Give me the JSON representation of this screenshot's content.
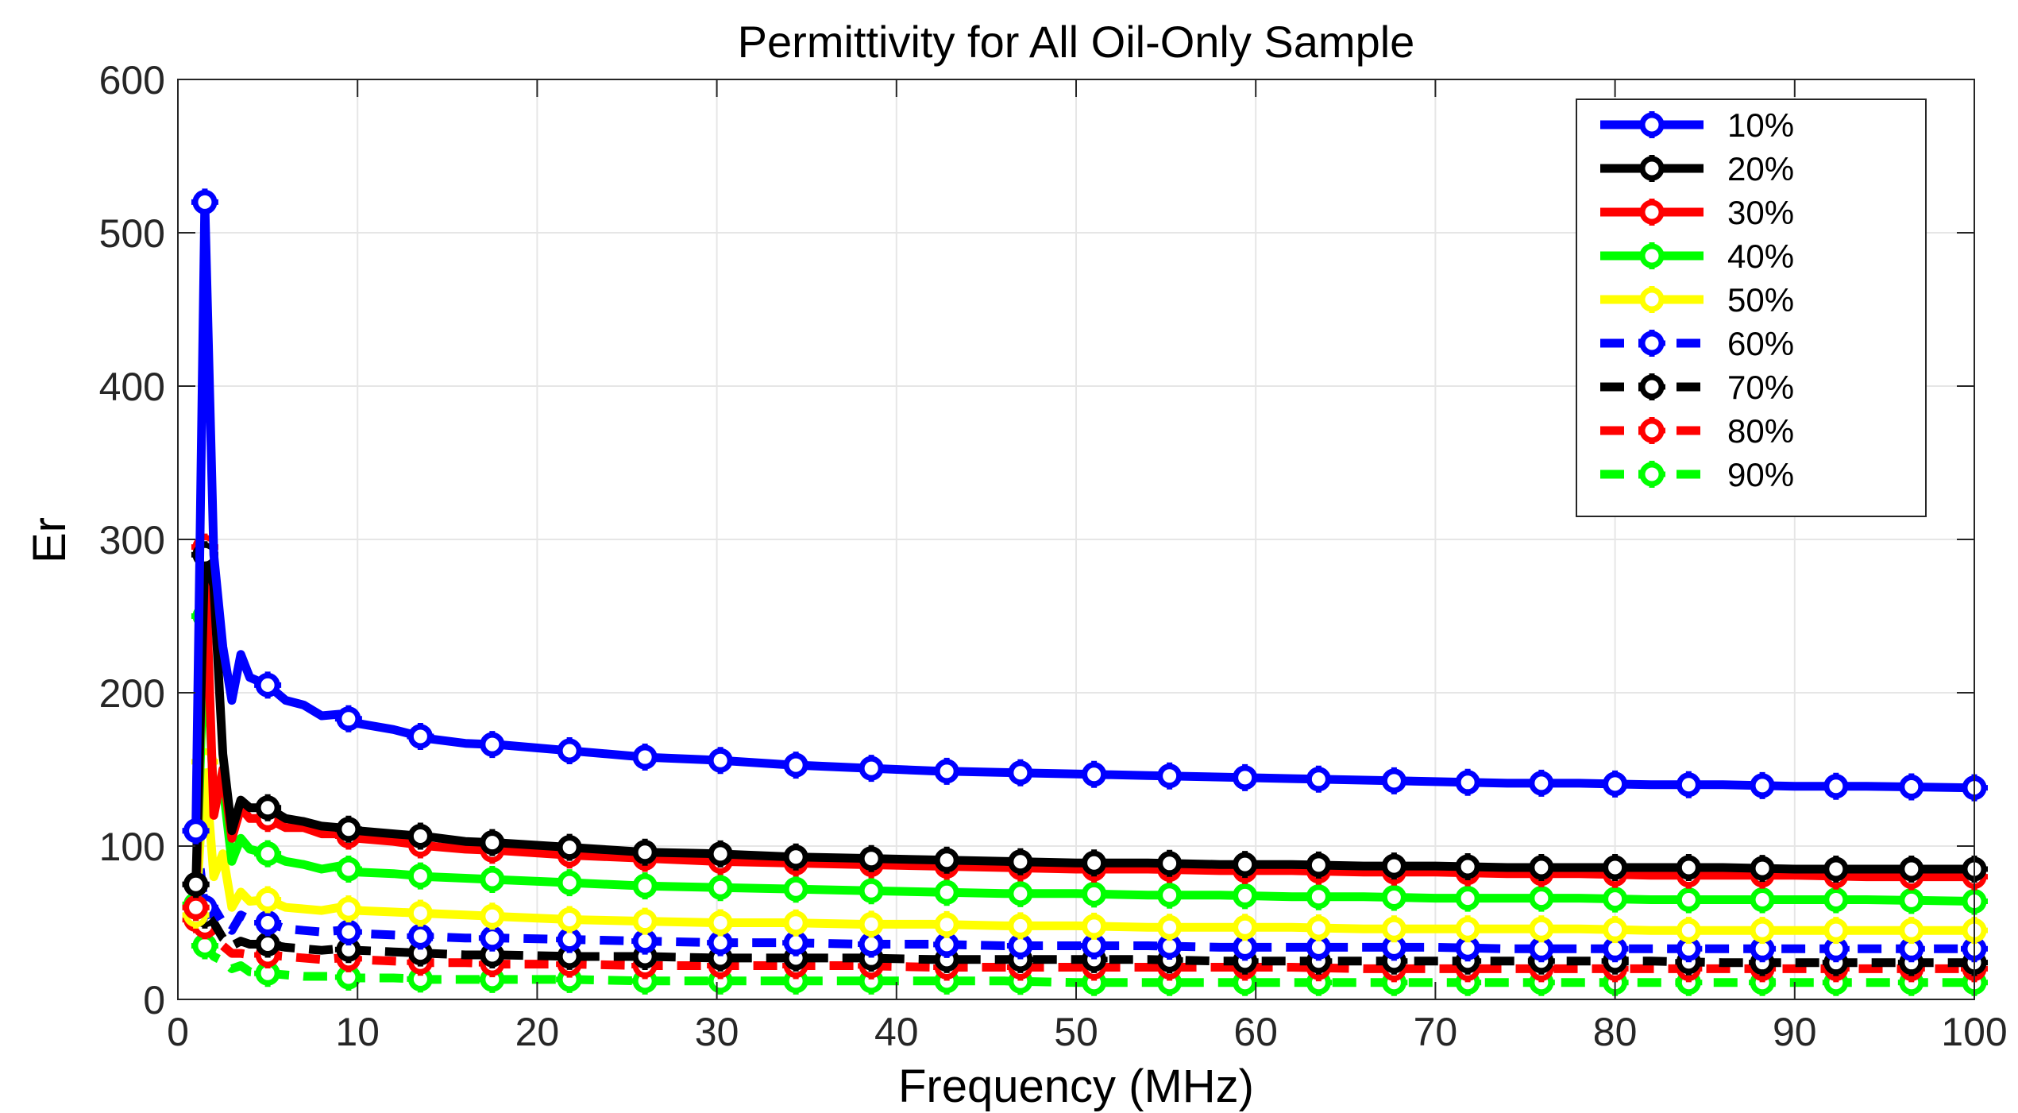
{
  "chart_data": {
    "type": "line",
    "title": "Permittivity for All Oil-Only Sample",
    "xlabel": "Frequency (MHz)",
    "ylabel": "Er",
    "xlim": [
      0,
      100
    ],
    "ylim": [
      0,
      600
    ],
    "xticks": [
      0,
      10,
      20,
      30,
      40,
      50,
      60,
      70,
      80,
      90,
      100
    ],
    "yticks": [
      0,
      100,
      200,
      300,
      400,
      500,
      600
    ],
    "grid": true,
    "legend_position": "top-right",
    "x": [
      1,
      1.5,
      2,
      2.5,
      3,
      3.5,
      4,
      5,
      6,
      7,
      8,
      9,
      10,
      12,
      14,
      16,
      18,
      22,
      26,
      30,
      34,
      38,
      42,
      46,
      50,
      54,
      58,
      62,
      66,
      70,
      74,
      78,
      82,
      86,
      90,
      94,
      100
    ],
    "marker_x": [
      1,
      1.5,
      5,
      9.5,
      13.5,
      17.5,
      21.8,
      26,
      30.2,
      34.4,
      38.6,
      42.8,
      46.9,
      51,
      55.2,
      59.4,
      63.5,
      67.7,
      71.8,
      75.9,
      80,
      84.1,
      88.2,
      92.3,
      96.5,
      100
    ],
    "series": [
      {
        "name": "10%",
        "color": "#0000ff",
        "style": "solid",
        "values": [
          110,
          520,
          290,
          230,
          195,
          225,
          210,
          205,
          195,
          192,
          185,
          186,
          180,
          176,
          170,
          167,
          166,
          162,
          158,
          156,
          153,
          151,
          149,
          148,
          147,
          146,
          145,
          144,
          143,
          142,
          141,
          141,
          140,
          140,
          139,
          139,
          138
        ]
      },
      {
        "name": "20%",
        "color": "#000000",
        "style": "solid",
        "values": [
          75,
          290,
          270,
          160,
          110,
          130,
          125,
          125,
          118,
          116,
          113,
          112,
          110,
          108,
          106,
          103,
          102,
          99,
          96,
          95,
          93,
          92,
          91,
          90,
          89,
          89,
          88,
          88,
          87,
          87,
          86,
          86,
          86,
          86,
          85,
          85,
          85
        ]
      },
      {
        "name": "30%",
        "color": "#ff0000",
        "style": "solid",
        "values": [
          60,
          295,
          120,
          150,
          105,
          125,
          118,
          118,
          112,
          112,
          108,
          108,
          105,
          103,
          100,
          98,
          97,
          94,
          92,
          90,
          89,
          88,
          87,
          86,
          85,
          85,
          84,
          84,
          83,
          83,
          82,
          82,
          81,
          81,
          81,
          80,
          80
        ]
      },
      {
        "name": "40%",
        "color": "#00ff00",
        "style": "solid",
        "values": [
          60,
          250,
          130,
          140,
          90,
          105,
          98,
          95,
          90,
          88,
          85,
          87,
          83,
          82,
          80,
          79,
          78,
          76,
          74,
          73,
          72,
          71,
          70,
          69,
          69,
          68,
          68,
          67,
          67,
          66,
          66,
          66,
          65,
          65,
          65,
          65,
          64
        ]
      },
      {
        "name": "50%",
        "color": "#ffff00",
        "style": "solid",
        "values": [
          55,
          155,
          80,
          95,
          60,
          70,
          64,
          65,
          60,
          59,
          58,
          60,
          58,
          57,
          56,
          55,
          54,
          52,
          51,
          50,
          50,
          49,
          49,
          48,
          48,
          47,
          47,
          47,
          46,
          46,
          46,
          46,
          45,
          45,
          45,
          45,
          45
        ]
      },
      {
        "name": "60%",
        "color": "#0000ff",
        "style": "dashed",
        "values": [
          110,
          60,
          60,
          50,
          45,
          55,
          52,
          50,
          46,
          45,
          44,
          45,
          43,
          42,
          41,
          40,
          40,
          39,
          38,
          37,
          37,
          36,
          36,
          35,
          35,
          35,
          34,
          34,
          34,
          34,
          33,
          33,
          33,
          33,
          33,
          33,
          33
        ]
      },
      {
        "name": "70%",
        "color": "#000000",
        "style": "dashed",
        "values": [
          75,
          55,
          50,
          40,
          35,
          38,
          36,
          36,
          34,
          33,
          32,
          33,
          32,
          31,
          30,
          29,
          29,
          28,
          28,
          27,
          27,
          27,
          26,
          26,
          26,
          26,
          25,
          25,
          25,
          25,
          25,
          25,
          25,
          24,
          24,
          24,
          24
        ]
      },
      {
        "name": "80%",
        "color": "#ff0000",
        "style": "dashed",
        "values": [
          52,
          48,
          40,
          35,
          30,
          30,
          29,
          29,
          28,
          27,
          26,
          27,
          26,
          25,
          24,
          24,
          23,
          23,
          22,
          22,
          22,
          22,
          21,
          21,
          21,
          21,
          21,
          21,
          20,
          20,
          20,
          20,
          20,
          20,
          20,
          20,
          20
        ]
      },
      {
        "name": "90%",
        "color": "#00ff00",
        "style": "dashed",
        "values": [
          62,
          35,
          28,
          25,
          20,
          22,
          18,
          17,
          16,
          15,
          15,
          15,
          14,
          14,
          13,
          13,
          13,
          13,
          12,
          12,
          12,
          12,
          12,
          12,
          11,
          11,
          11,
          11,
          11,
          11,
          11,
          11,
          11,
          11,
          11,
          11,
          11
        ]
      }
    ]
  }
}
